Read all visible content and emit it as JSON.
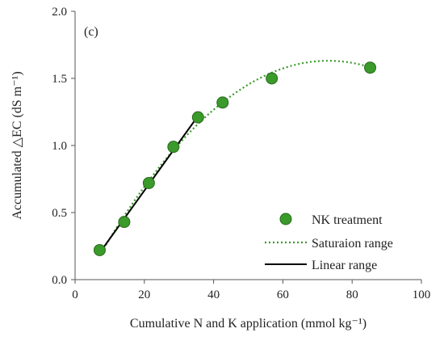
{
  "chart_data": {
    "type": "scatter",
    "panel_label": "(c)",
    "xlabel": "Cumulative N and K application (mmol kg⁻¹)",
    "ylabel": "Accumulated △EC (dS m⁻¹)",
    "xlim": [
      0,
      100
    ],
    "ylim": [
      0.0,
      2.0
    ],
    "x_ticks": [
      0,
      20,
      40,
      60,
      80,
      100
    ],
    "x_tick_labels": [
      "0",
      "20",
      "40",
      "60",
      "80",
      "100"
    ],
    "y_ticks": [
      0.0,
      0.5,
      1.0,
      1.5,
      2.0
    ],
    "y_tick_labels": [
      "0.0",
      "0.5",
      "1.0",
      "1.5",
      "2.0"
    ],
    "grid": false,
    "legend_position": "bottom-right",
    "series": [
      {
        "name": "NK treatment",
        "kind": "scatter",
        "color": "#3a9a2a",
        "x": [
          7.1,
          14.2,
          21.3,
          28.4,
          35.5,
          42.6,
          56.8,
          85.2
        ],
        "y": [
          0.22,
          0.43,
          0.72,
          0.99,
          1.21,
          1.32,
          1.5,
          1.58
        ]
      },
      {
        "name": "Saturaion range",
        "kind": "quadratic",
        "style": "dotted",
        "color": "#3a9a2a",
        "x_range": [
          7.1,
          85.2
        ],
        "coefficients": [
          -0.000333,
          0.0487,
          -0.149
        ]
      },
      {
        "name": "Linear range",
        "kind": "line",
        "style": "solid",
        "color": "#000000",
        "x": [
          7.1,
          35.5
        ],
        "y": [
          0.2,
          1.22
        ]
      }
    ]
  }
}
